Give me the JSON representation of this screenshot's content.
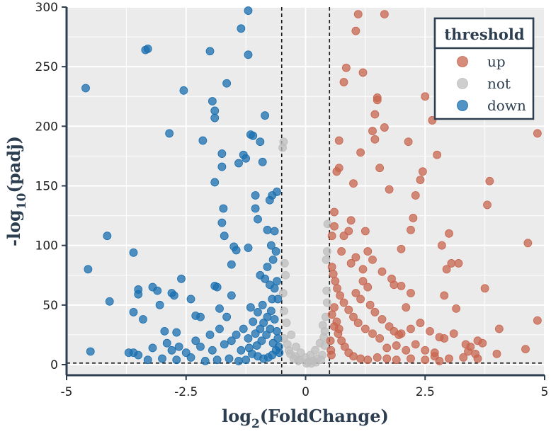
{
  "chart_data": {
    "type": "scatter",
    "title": "",
    "xlabel_base": "log",
    "xlabel_sub": "2",
    "xlabel_rest": "(FoldChange)",
    "ylabel_pre": "-log",
    "ylabel_sub": "10",
    "ylabel_rest": "(padj)",
    "xlim": [
      -5,
      5
    ],
    "ylim": [
      0,
      300
    ],
    "xticks": [
      -5,
      -2.5,
      0,
      2.5,
      5
    ],
    "xtick_labels": [
      "-5",
      "-2.5",
      "0",
      "2.5",
      "5"
    ],
    "yticks": [
      0,
      50,
      100,
      150,
      200,
      250,
      300
    ],
    "ytick_labels": [
      "0",
      "50",
      "100",
      "150",
      "200",
      "250",
      "300"
    ],
    "grid": true,
    "vlines": [
      -0.5,
      0.5
    ],
    "hline": 1.3,
    "legend": {
      "title": "threshold",
      "position": "top-right",
      "entries": [
        {
          "label": "up",
          "color": "#c8654f"
        },
        {
          "label": "not",
          "color": "#bdbdbd"
        },
        {
          "label": "down",
          "color": "#1a6fb0"
        }
      ]
    },
    "colors": {
      "up": "#c8654f",
      "not": "#bdbdbd",
      "down": "#1a6fb0",
      "panel": "#ebebeb",
      "grid": "#ffffff"
    },
    "series": [
      {
        "name": "down",
        "points": [
          [
            -4.6,
            232
          ],
          [
            -4.55,
            80
          ],
          [
            -4.5,
            11
          ],
          [
            -4.15,
            108
          ],
          [
            -4.1,
            53
          ],
          [
            -3.6,
            94
          ],
          [
            -3.6,
            44
          ],
          [
            -3.5,
            63
          ],
          [
            -3.5,
            59
          ],
          [
            -3.4,
            38
          ],
          [
            -3.35,
            264
          ],
          [
            -3.3,
            265
          ],
          [
            -3.2,
            65
          ],
          [
            -3.1,
            62
          ],
          [
            -3.05,
            50
          ],
          [
            -2.95,
            28
          ],
          [
            -2.85,
            194
          ],
          [
            -2.8,
            60
          ],
          [
            -2.75,
            58
          ],
          [
            -2.7,
            27
          ],
          [
            -2.6,
            72
          ],
          [
            -2.55,
            230
          ],
          [
            -2.4,
            55
          ],
          [
            -2.3,
            41
          ],
          [
            -2.2,
            40
          ],
          [
            -2.15,
            188
          ],
          [
            -2.0,
            263
          ],
          [
            -1.95,
            221
          ],
          [
            -1.9,
            213
          ],
          [
            -1.9,
            207
          ],
          [
            -1.9,
            153
          ],
          [
            -1.9,
            66
          ],
          [
            -1.85,
            65
          ],
          [
            -1.8,
            47
          ],
          [
            -1.75,
            177
          ],
          [
            -1.75,
            166
          ],
          [
            -1.75,
            119
          ],
          [
            -1.7,
            108
          ],
          [
            -1.72,
            131
          ],
          [
            -1.65,
            236
          ],
          [
            -1.55,
            84
          ],
          [
            -1.55,
            58
          ],
          [
            -1.5,
            99
          ],
          [
            -1.45,
            96
          ],
          [
            -1.4,
            169
          ],
          [
            -1.35,
            282
          ],
          [
            -1.3,
            176
          ],
          [
            -1.25,
            173
          ],
          [
            -1.2,
            297
          ],
          [
            -1.2,
            260
          ],
          [
            -1.2,
            98
          ],
          [
            -1.15,
            193
          ],
          [
            -1.1,
            192
          ],
          [
            -1.05,
            142
          ],
          [
            -1.05,
            131
          ],
          [
            -1.0,
            122
          ],
          [
            -0.95,
            187
          ],
          [
            -0.9,
            170
          ],
          [
            -0.85,
            209
          ],
          [
            -0.8,
            113
          ],
          [
            -0.75,
            138
          ],
          [
            -0.7,
            142
          ],
          [
            -0.65,
            112
          ],
          [
            -0.6,
            145
          ],
          [
            -0.95,
            75
          ],
          [
            -0.85,
            72
          ],
          [
            -0.75,
            67
          ],
          [
            -0.65,
            64
          ],
          [
            -0.7,
            55
          ],
          [
            -0.62,
            95
          ],
          [
            -3.7,
            10
          ],
          [
            -3.6,
            10
          ],
          [
            -3.5,
            8
          ],
          [
            -2.9,
            18
          ],
          [
            -2.65,
            15
          ],
          [
            -2.3,
            20
          ],
          [
            -1.95,
            12
          ],
          [
            -1.7,
            17
          ],
          [
            -1.35,
            12
          ],
          [
            -1.2,
            22
          ],
          [
            -1.05,
            26
          ],
          [
            -0.95,
            30
          ],
          [
            -0.88,
            35
          ],
          [
            -0.8,
            40
          ],
          [
            -0.72,
            45
          ],
          [
            -0.68,
            18
          ],
          [
            -0.58,
            22
          ],
          [
            -0.6,
            28
          ],
          [
            -0.56,
            15
          ],
          [
            -0.55,
            10
          ],
          [
            -0.62,
            12
          ],
          [
            -0.7,
            8
          ],
          [
            -0.78,
            6
          ],
          [
            -0.88,
            5
          ],
          [
            -1.0,
            7
          ],
          [
            -1.12,
            9
          ],
          [
            -1.25,
            4
          ],
          [
            -1.4,
            3
          ],
          [
            -1.6,
            5
          ],
          [
            -1.85,
            4
          ],
          [
            -2.1,
            3
          ],
          [
            -2.4,
            6
          ],
          [
            -2.7,
            4
          ],
          [
            -3.0,
            5
          ],
          [
            -3.3,
            4
          ],
          [
            -0.9,
            50
          ],
          [
            -1.0,
            44
          ],
          [
            -1.1,
            36
          ],
          [
            -1.15,
            48
          ],
          [
            -0.65,
            38
          ],
          [
            -0.74,
            30
          ],
          [
            -0.82,
            25
          ],
          [
            -0.92,
            20
          ],
          [
            -1.02,
            16
          ],
          [
            -1.18,
            14
          ],
          [
            -1.3,
            30
          ],
          [
            -1.45,
            25
          ],
          [
            -1.55,
            20
          ],
          [
            -1.65,
            40
          ],
          [
            -1.8,
            30
          ],
          [
            -2.0,
            25
          ],
          [
            -2.2,
            15
          ],
          [
            -2.5,
            10
          ],
          [
            -2.8,
            12
          ],
          [
            -3.2,
            14
          ],
          [
            -0.58,
            55
          ],
          [
            -0.6,
            70
          ],
          [
            -0.68,
            88
          ],
          [
            -0.72,
            100
          ],
          [
            -0.8,
            82
          ]
        ]
      },
      {
        "name": "not",
        "points": [
          [
            -0.45,
            45
          ],
          [
            -0.4,
            35
          ],
          [
            -0.3,
            25
          ],
          [
            -0.2,
            15
          ],
          [
            -0.1,
            10
          ],
          [
            0.0,
            6
          ],
          [
            0.1,
            8
          ],
          [
            0.2,
            12
          ],
          [
            0.3,
            18
          ],
          [
            0.4,
            28
          ],
          [
            0.42,
            40
          ],
          [
            0.45,
            52
          ],
          [
            0.44,
            62
          ],
          [
            0.43,
            88
          ],
          [
            0.45,
            95
          ],
          [
            0.46,
            118
          ],
          [
            -0.42,
            75
          ],
          [
            -0.44,
            85
          ],
          [
            -0.46,
            187
          ],
          [
            -0.48,
            182
          ],
          [
            -0.47,
            60
          ],
          [
            -0.45,
            22
          ],
          [
            -0.35,
            12
          ],
          [
            -0.25,
            5
          ],
          [
            -0.15,
            3
          ],
          [
            0.05,
            2
          ],
          [
            0.15,
            3
          ],
          [
            0.25,
            5
          ],
          [
            0.35,
            8
          ],
          [
            0.4,
            16
          ],
          [
            0.38,
            23
          ],
          [
            0.36,
            33
          ],
          [
            -0.38,
            17
          ],
          [
            -0.32,
            9
          ],
          [
            -0.22,
            7
          ],
          [
            -0.12,
            4
          ],
          [
            0.02,
            1
          ],
          [
            0.12,
            1
          ],
          [
            0.22,
            2
          ],
          [
            0.32,
            4
          ]
        ]
      },
      {
        "name": "up",
        "points": [
          [
            4.85,
            194
          ],
          [
            4.85,
            37
          ],
          [
            4.65,
            102
          ],
          [
            4.6,
            13
          ],
          [
            4.05,
            30
          ],
          [
            4.0,
            9
          ],
          [
            3.85,
            154
          ],
          [
            3.8,
            134
          ],
          [
            3.75,
            64
          ],
          [
            3.7,
            18
          ],
          [
            3.6,
            20
          ],
          [
            3.55,
            9
          ],
          [
            3.45,
            15
          ],
          [
            3.4,
            11
          ],
          [
            3.35,
            17
          ],
          [
            3.2,
            85
          ],
          [
            3.15,
            47
          ],
          [
            3.05,
            85
          ],
          [
            3.0,
            110
          ],
          [
            2.95,
            80
          ],
          [
            2.9,
            58
          ],
          [
            2.85,
            100
          ],
          [
            2.8,
            23
          ],
          [
            2.75,
            176
          ],
          [
            2.7,
            10
          ],
          [
            2.65,
            205
          ],
          [
            2.5,
            225
          ],
          [
            2.45,
            162
          ],
          [
            2.4,
            155
          ],
          [
            2.3,
            142
          ],
          [
            2.25,
            123
          ],
          [
            2.2,
            113
          ],
          [
            2.15,
            187
          ],
          [
            2.1,
            48
          ],
          [
            2.0,
            97
          ],
          [
            1.95,
            25
          ],
          [
            1.85,
            67
          ],
          [
            1.75,
            147
          ],
          [
            1.65,
            294
          ],
          [
            1.65,
            199
          ],
          [
            1.55,
            165
          ],
          [
            1.5,
            224
          ],
          [
            1.5,
            222
          ],
          [
            1.45,
            210
          ],
          [
            1.45,
            189
          ],
          [
            1.4,
            196
          ],
          [
            1.3,
            95
          ],
          [
            1.25,
            112
          ],
          [
            1.2,
            245
          ],
          [
            1.15,
            178
          ],
          [
            1.1,
            294
          ],
          [
            1.05,
            280
          ],
          [
            1.0,
            152
          ],
          [
            0.95,
            121
          ],
          [
            0.9,
            112
          ],
          [
            0.85,
            249
          ],
          [
            0.8,
            237
          ],
          [
            0.8,
            108
          ],
          [
            0.75,
            95
          ],
          [
            0.7,
            188
          ],
          [
            0.7,
            165
          ],
          [
            0.65,
            162
          ],
          [
            0.6,
            128
          ],
          [
            0.6,
            116
          ],
          [
            0.55,
            108
          ],
          [
            3.6,
            5
          ],
          [
            3.3,
            6
          ],
          [
            3.0,
            5
          ],
          [
            2.7,
            7
          ],
          [
            2.5,
            12
          ],
          [
            2.3,
            17
          ],
          [
            2.1,
            12
          ],
          [
            1.9,
            16
          ],
          [
            1.7,
            14
          ],
          [
            1.55,
            22
          ],
          [
            1.4,
            26
          ],
          [
            1.25,
            30
          ],
          [
            1.1,
            35
          ],
          [
            1.0,
            40
          ],
          [
            0.9,
            46
          ],
          [
            0.8,
            52
          ],
          [
            0.72,
            58
          ],
          [
            0.66,
            64
          ],
          [
            0.62,
            70
          ],
          [
            0.58,
            76
          ],
          [
            0.55,
            82
          ],
          [
            0.6,
            32
          ],
          [
            0.68,
            26
          ],
          [
            0.75,
            20
          ],
          [
            0.82,
            15
          ],
          [
            0.9,
            10
          ],
          [
            1.0,
            7
          ],
          [
            1.15,
            5
          ],
          [
            1.3,
            4
          ],
          [
            1.5,
            6
          ],
          [
            1.7,
            5
          ],
          [
            1.9,
            4
          ],
          [
            2.2,
            5
          ],
          [
            2.5,
            4
          ],
          [
            2.8,
            3
          ],
          [
            1.05,
            60
          ],
          [
            1.15,
            55
          ],
          [
            1.2,
            70
          ],
          [
            1.3,
            65
          ],
          [
            1.35,
            50
          ],
          [
            1.45,
            44
          ],
          [
            1.6,
            38
          ],
          [
            1.75,
            32
          ],
          [
            1.85,
            28
          ],
          [
            2.0,
            26
          ],
          [
            2.2,
            30
          ],
          [
            2.4,
            35
          ],
          [
            2.6,
            28
          ],
          [
            2.9,
            22
          ],
          [
            3.1,
            26
          ],
          [
            0.55,
            42
          ],
          [
            0.6,
            48
          ],
          [
            0.65,
            36
          ],
          [
            0.7,
            30
          ],
          [
            0.52,
            20
          ],
          [
            0.53,
            12
          ],
          [
            0.54,
            8
          ],
          [
            0.95,
            85
          ],
          [
            1.05,
            90
          ],
          [
            1.2,
            80
          ],
          [
            1.4,
            88
          ],
          [
            1.6,
            78
          ],
          [
            1.8,
            72
          ],
          [
            2.0,
            66
          ],
          [
            2.2,
            60
          ]
        ]
      }
    ]
  }
}
